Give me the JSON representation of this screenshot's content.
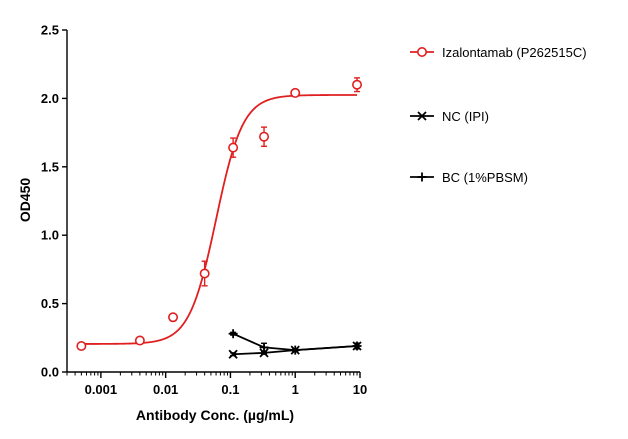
{
  "chart_data": {
    "type": "scatter",
    "title": "",
    "xlabel": "Antibody Conc. (µg/mL)",
    "ylabel": "OD450",
    "xscale": "log",
    "xlim": [
      0.0003,
      10
    ],
    "ylim": [
      0,
      2.5
    ],
    "x_ticks": [
      0.001,
      0.01,
      0.1,
      1,
      10
    ],
    "x_tick_labels": [
      "0.001",
      "0.01",
      "0.1",
      "1",
      "10"
    ],
    "y_ticks": [
      0,
      0.5,
      1,
      1.5,
      2,
      2.5
    ],
    "y_tick_labels": [
      "0.0",
      "0.5",
      "1.0",
      "1.5",
      "2.0",
      "2.5"
    ],
    "grid": false,
    "legend_position": "right",
    "series": [
      {
        "name": "Izalontamab (P262515C)",
        "color": "#e02020",
        "marker": "open-circle",
        "fit": "sigmoidal",
        "fit_params": {
          "bottom": 0.205,
          "top": 2.025,
          "ec50": 0.06,
          "hill": 2.1
        },
        "points": [
          {
            "x": 0.0005,
            "y": 0.19,
            "err": 0.02
          },
          {
            "x": 0.004,
            "y": 0.23,
            "err": 0.02
          },
          {
            "x": 0.013,
            "y": 0.4,
            "err": 0.02
          },
          {
            "x": 0.04,
            "y": 0.72,
            "err": 0.09
          },
          {
            "x": 0.11,
            "y": 1.64,
            "err": 0.07
          },
          {
            "x": 0.33,
            "y": 1.72,
            "err": 0.07
          },
          {
            "x": 1,
            "y": 2.04,
            "err": 0.02
          },
          {
            "x": 9,
            "y": 2.1,
            "err": 0.05
          }
        ]
      },
      {
        "name": "NC (IPI)",
        "color": "#000000",
        "marker": "cross",
        "fit": "line",
        "points": [
          {
            "x": 0.11,
            "y": 0.13,
            "err": 0.01
          },
          {
            "x": 0.33,
            "y": 0.14,
            "err": 0.01
          },
          {
            "x": 1,
            "y": 0.16,
            "err": 0.01
          },
          {
            "x": 9,
            "y": 0.19,
            "err": 0.02
          }
        ]
      },
      {
        "name": "BC (1%PBSM)",
        "color": "#000000",
        "marker": "plus",
        "fit": "line",
        "points": [
          {
            "x": 0.11,
            "y": 0.28,
            "err": 0.01
          },
          {
            "x": 0.33,
            "y": 0.18,
            "err": 0.03
          },
          {
            "x": 1,
            "y": 0.16,
            "err": 0.01
          },
          {
            "x": 9,
            "y": 0.19,
            "err": 0.02
          }
        ]
      }
    ]
  }
}
